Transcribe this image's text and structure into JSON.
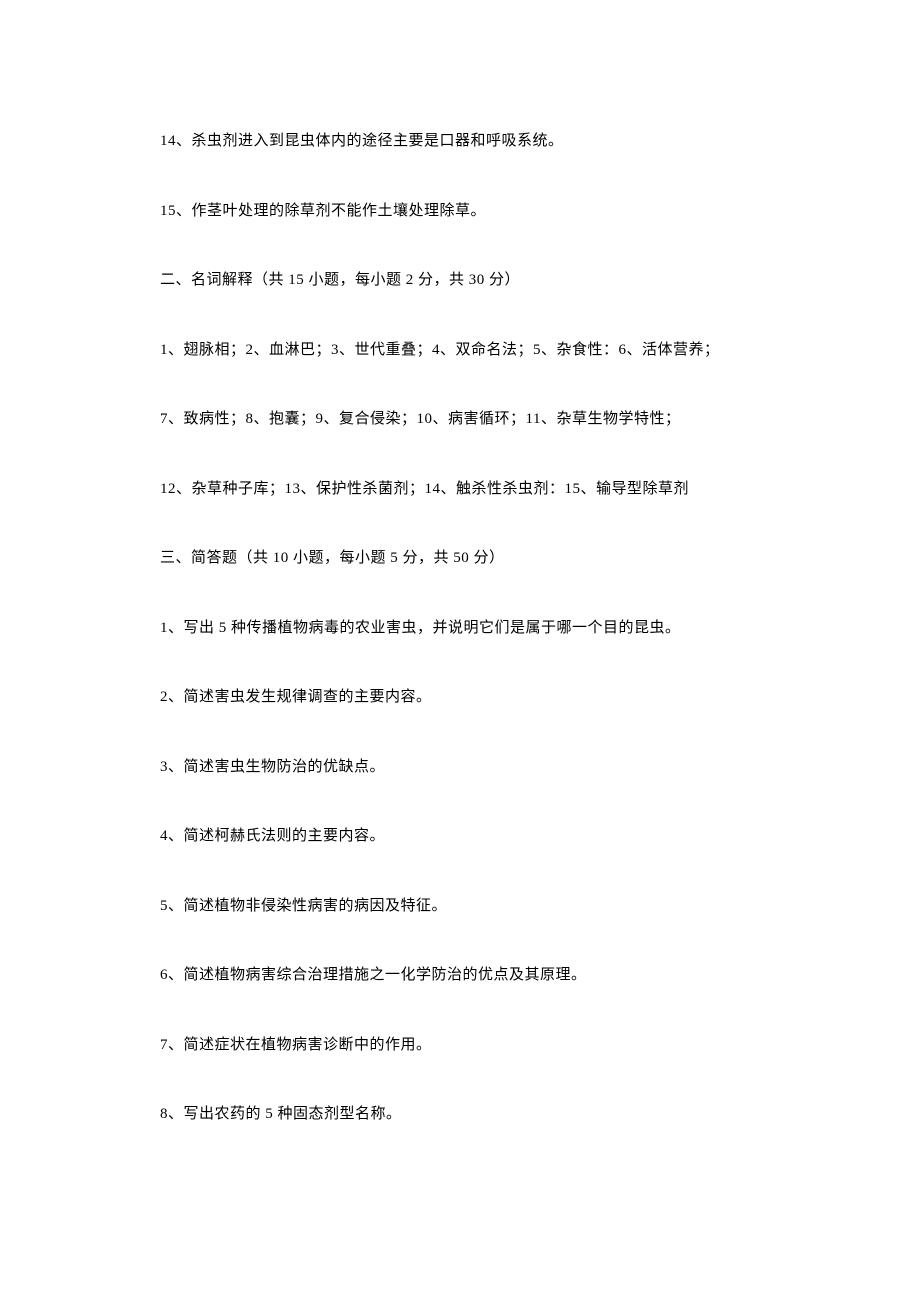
{
  "document": {
    "background_color": "#ffffff",
    "text_color": "#000000",
    "font_size": 15,
    "font_family": "SimSun",
    "line_spacing": 47,
    "lines": [
      "14、杀虫剂进入到昆虫体内的途径主要是口器和呼吸系统。",
      "15、作茎叶处理的除草剂不能作土壤处理除草。",
      "二、名词解释（共 15 小题，每小题 2 分，共 30 分）",
      "1、翅脉相；2、血淋巴；3、世代重叠；4、双命名法；5、杂食性：6、活体营养；",
      "7、致病性；8、抱囊；9、复合侵染；10、病害循环；11、杂草生物学特性；",
      "12、杂草种子库；13、保护性杀菌剂；14、触杀性杀虫剂：15、输导型除草剂",
      "三、简答题（共 10 小题，每小题 5 分，共 50 分）",
      "1、写出 5 种传播植物病毒的农业害虫，并说明它们是属于哪一个目的昆虫。",
      "2、简述害虫发生规律调查的主要内容。",
      "3、简述害虫生物防治的优缺点。",
      "4、简述柯赫氏法则的主要内容。",
      "5、简述植物非侵染性病害的病因及特征。",
      "6、简述植物病害综合治理措施之一化学防治的优点及其原理。",
      "7、简述症状在植物病害诊断中的作用。",
      "8、写出农药的 5 种固态剂型名称。"
    ]
  }
}
